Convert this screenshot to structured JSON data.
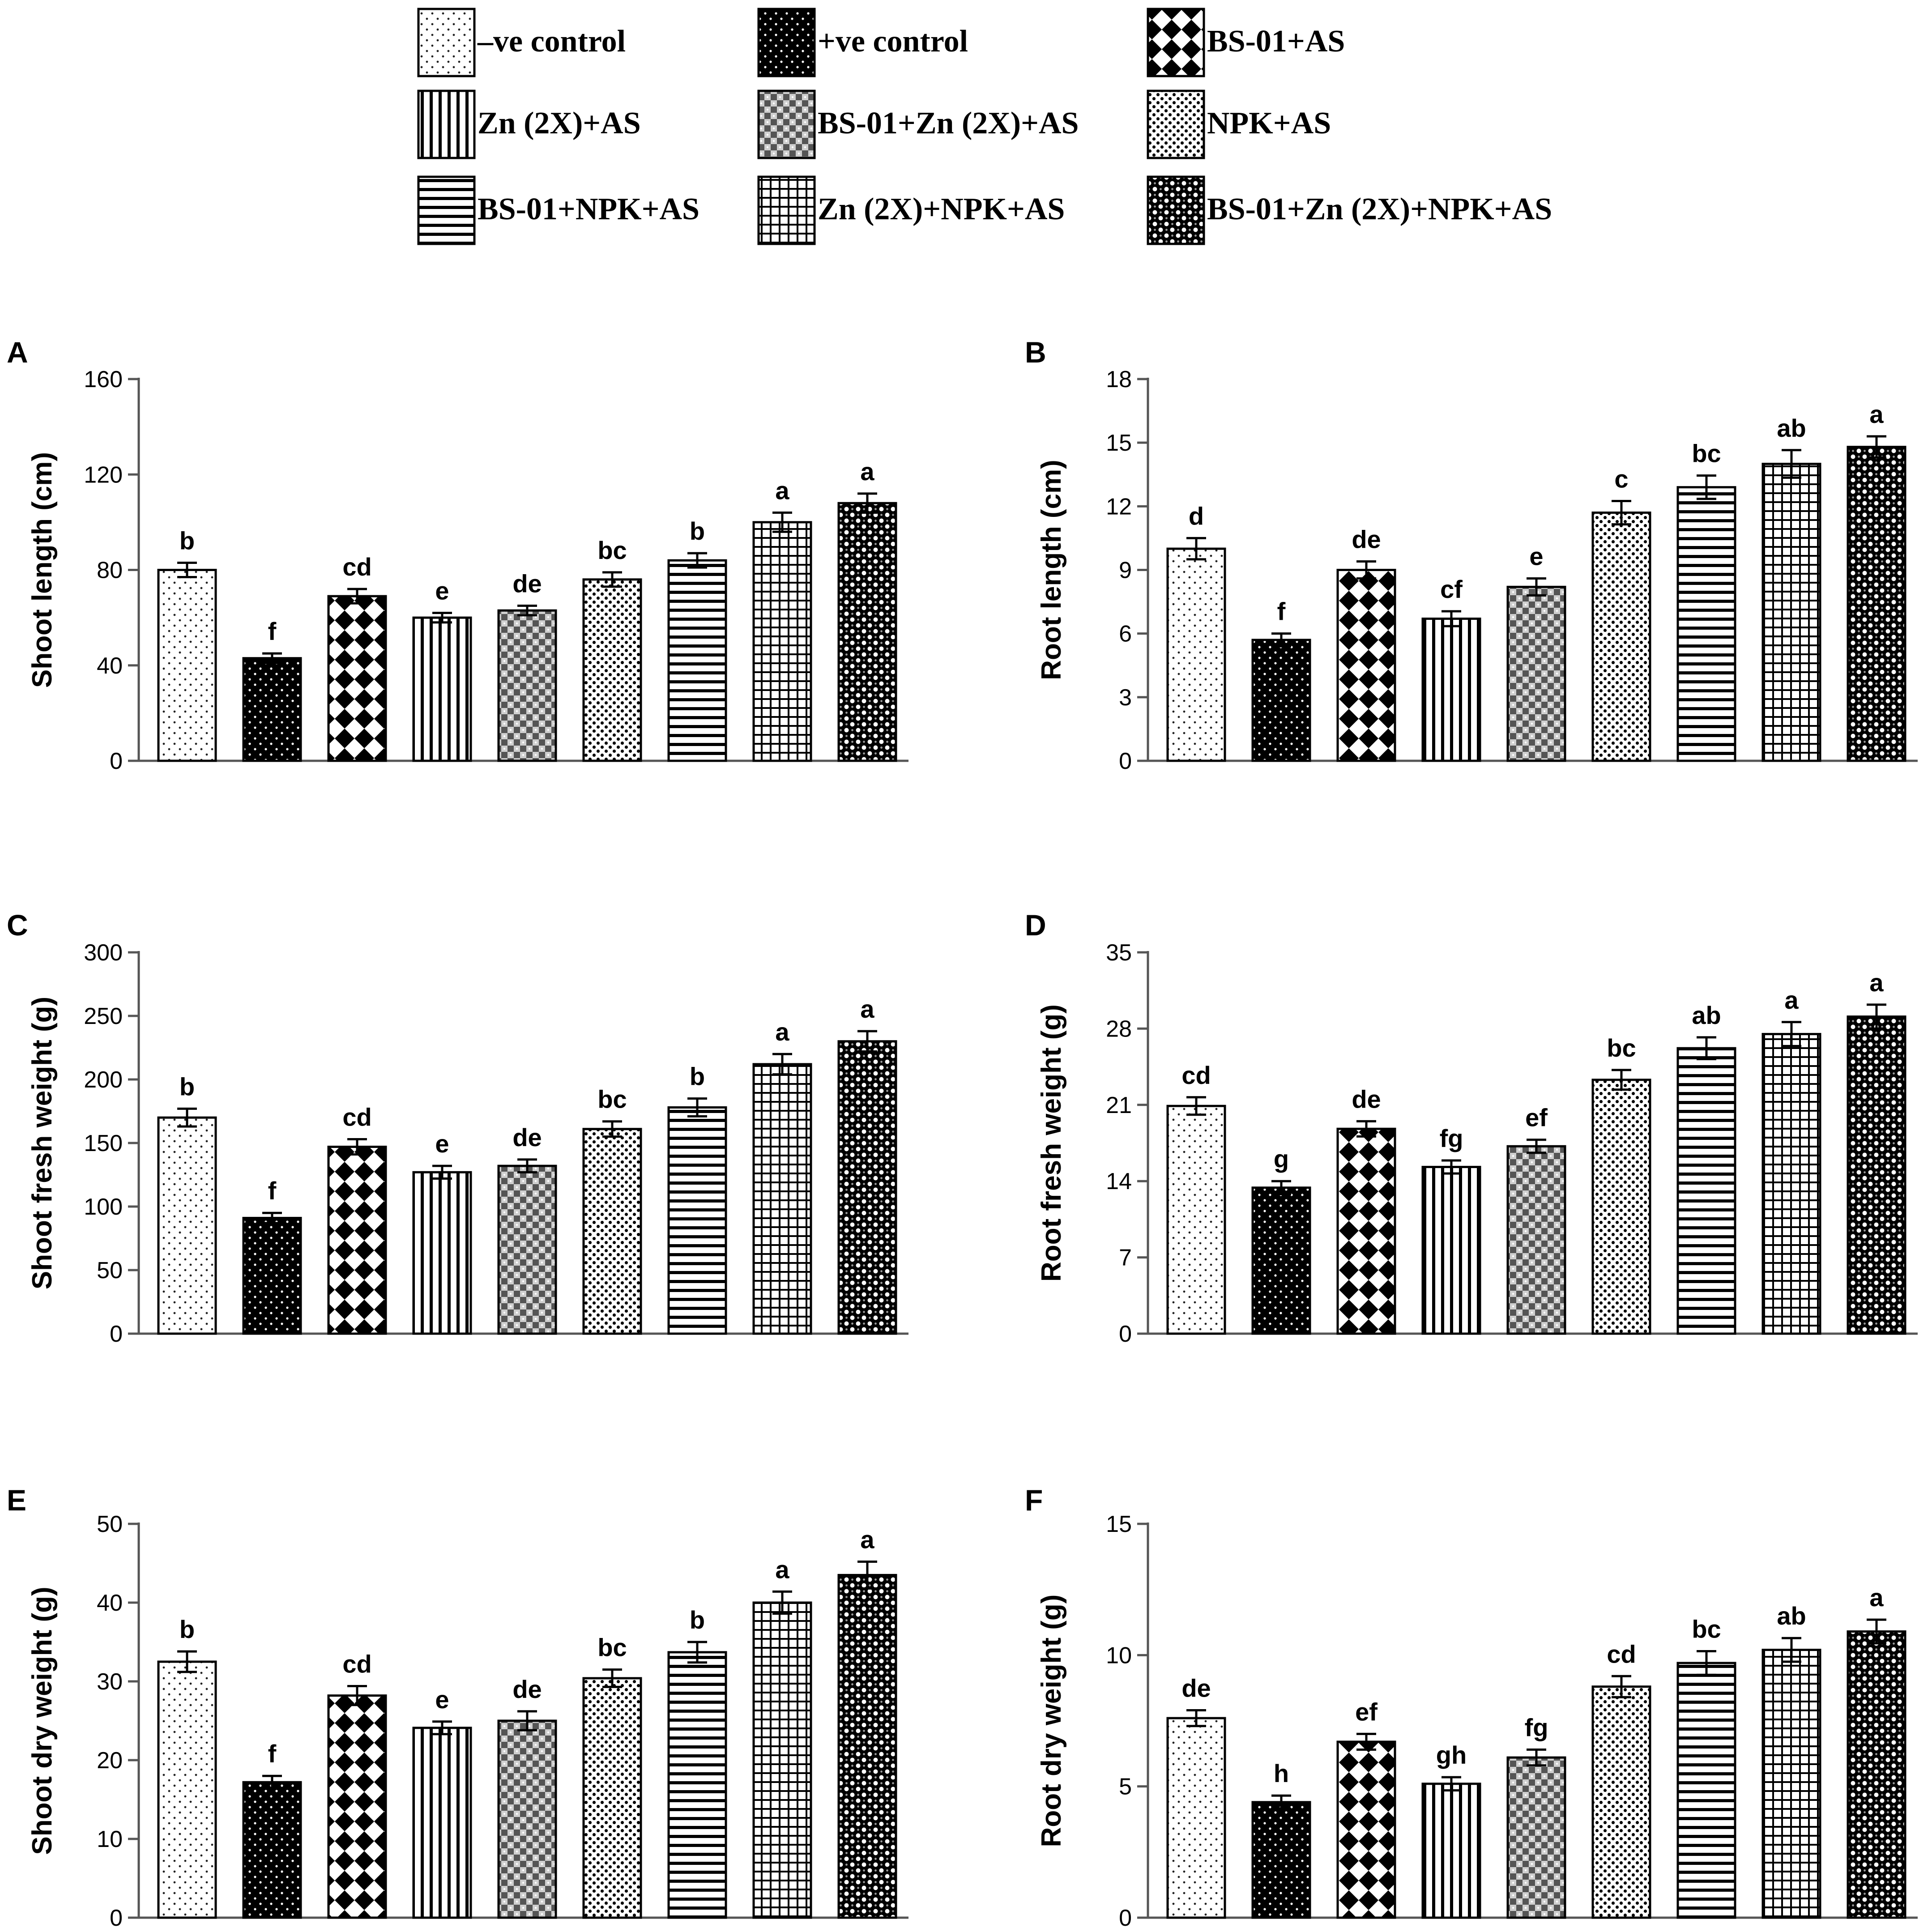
{
  "legend": [
    {
      "label": "–ve control",
      "pattern": "dots-sparse"
    },
    {
      "label": "+ve control",
      "pattern": "dots-black"
    },
    {
      "label": "BS-01+AS",
      "pattern": "diamonds"
    },
    {
      "label": "Zn (2X)+AS",
      "pattern": "vlines"
    },
    {
      "label": "BS-01+Zn (2X)+AS",
      "pattern": "checker"
    },
    {
      "label": "NPK+AS",
      "pattern": "dots-dense"
    },
    {
      "label": "BS-01+NPK+AS",
      "pattern": "hlines"
    },
    {
      "label": "Zn (2X)+NPK+AS",
      "pattern": "grid"
    },
    {
      "label": "BS-01+Zn (2X)+NPK+AS",
      "pattern": "circles"
    }
  ],
  "chart_data": [
    {
      "panel": "A",
      "type": "bar",
      "ylabel": "Shoot length (cm)",
      "ylim": [
        0,
        160
      ],
      "yticks": [
        "0",
        "40",
        "80",
        "120",
        "160"
      ],
      "categories": [
        "–ve control",
        "+ve control",
        "BS-01+AS",
        "Zn (2X)+AS",
        "BS-01+Zn (2X)+AS",
        "NPK+AS",
        "BS-01+NPK+AS",
        "Zn (2X)+NPK+AS",
        "BS-01+Zn (2X)+NPK+AS"
      ],
      "values": [
        80,
        43,
        69,
        60,
        63,
        76,
        84,
        100,
        108
      ],
      "errors": [
        3,
        2,
        3,
        2,
        2,
        3,
        3,
        4,
        4
      ],
      "letters": [
        "b",
        "f",
        "cd",
        "e",
        "de",
        "bc",
        "b",
        "a",
        "a"
      ]
    },
    {
      "panel": "B",
      "type": "bar",
      "ylabel": "Root length (cm)",
      "ylim": [
        0,
        18
      ],
      "yticks": [
        "0",
        "3",
        "6",
        "9",
        "12",
        "15",
        "18"
      ],
      "categories": [
        "–ve control",
        "+ve control",
        "BS-01+AS",
        "Zn (2X)+AS",
        "BS-01+Zn (2X)+AS",
        "NPK+AS",
        "BS-01+NPK+AS",
        "Zn (2X)+NPK+AS",
        "BS-01+Zn (2X)+NPK+AS"
      ],
      "values": [
        10,
        5.7,
        9,
        6.7,
        8.2,
        11.7,
        12.9,
        14,
        14.8
      ],
      "errors": [
        0.5,
        0.3,
        0.4,
        0.35,
        0.4,
        0.55,
        0.55,
        0.65,
        0.5
      ],
      "letters": [
        "d",
        "f",
        "de",
        "cf",
        "e",
        "c",
        "bc",
        "ab",
        "a"
      ]
    },
    {
      "panel": "C",
      "type": "bar",
      "ylabel": "Shoot fresh weight (g)",
      "ylim": [
        0,
        300
      ],
      "yticks": [
        "0",
        "50",
        "100",
        "150",
        "200",
        "250",
        "300"
      ],
      "categories": [
        "–ve control",
        "+ve control",
        "BS-01+AS",
        "Zn (2X)+AS",
        "BS-01+Zn (2X)+AS",
        "NPK+AS",
        "BS-01+NPK+AS",
        "Zn (2X)+NPK+AS",
        "BS-01+Zn (2X)+NPK+AS"
      ],
      "values": [
        170,
        91,
        147,
        127,
        132,
        161,
        178,
        212,
        230
      ],
      "errors": [
        7,
        4,
        6,
        5,
        5,
        6,
        7,
        8,
        8
      ],
      "letters": [
        "b",
        "f",
        "cd",
        "e",
        "de",
        "bc",
        "b",
        "a",
        "a"
      ]
    },
    {
      "panel": "D",
      "type": "bar",
      "ylabel": "Root fresh weight (g)",
      "ylim": [
        0,
        35
      ],
      "yticks": [
        "0",
        "7",
        "14",
        "21",
        "28",
        "35"
      ],
      "categories": [
        "–ve control",
        "+ve control",
        "BS-01+AS",
        "Zn (2X)+AS",
        "BS-01+Zn (2X)+AS",
        "NPK+AS",
        "BS-01+NPK+AS",
        "Zn (2X)+NPK+AS",
        "BS-01+Zn (2X)+NPK+AS"
      ],
      "values": [
        20.9,
        13.4,
        18.8,
        15.3,
        17.2,
        23.3,
        26.2,
        27.5,
        29.1
      ],
      "errors": [
        0.8,
        0.6,
        0.7,
        0.6,
        0.6,
        0.9,
        1.0,
        1.1,
        1.1
      ],
      "letters": [
        "cd",
        "g",
        "de",
        "fg",
        "ef",
        "bc",
        "ab",
        "a",
        "a"
      ]
    },
    {
      "panel": "E",
      "type": "bar",
      "ylabel": "Shoot dry weight (g)",
      "ylim": [
        0,
        50
      ],
      "yticks": [
        "0",
        "10",
        "20",
        "30",
        "40",
        "50"
      ],
      "categories": [
        "–ve control",
        "+ve control",
        "BS-01+AS",
        "Zn (2X)+AS",
        "BS-01+Zn (2X)+AS",
        "NPK+AS",
        "BS-01+NPK+AS",
        "Zn (2X)+NPK+AS",
        "BS-01+Zn (2X)+NPK+AS"
      ],
      "values": [
        32.5,
        17.2,
        28.2,
        24.1,
        25,
        30.4,
        33.7,
        40,
        43.5
      ],
      "errors": [
        1.3,
        0.8,
        1.2,
        0.8,
        1.2,
        1.1,
        1.3,
        1.4,
        1.7
      ],
      "letters": [
        "b",
        "f",
        "cd",
        "e",
        "de",
        "bc",
        "b",
        "a",
        "a"
      ]
    },
    {
      "panel": "F",
      "type": "bar",
      "ylabel": "Root dry weight (g)",
      "ylim": [
        0,
        15
      ],
      "yticks": [
        "0",
        "5",
        "10",
        "15"
      ],
      "categories": [
        "–ve control",
        "+ve control",
        "BS-01+AS",
        "Zn (2X)+AS",
        "BS-01+Zn (2X)+AS",
        "NPK+AS",
        "BS-01+NPK+AS",
        "Zn (2X)+NPK+AS",
        "BS-01+Zn (2X)+NPK+AS"
      ],
      "values": [
        7.6,
        4.4,
        6.7,
        5.1,
        6.1,
        8.8,
        9.7,
        10.2,
        10.9
      ],
      "errors": [
        0.3,
        0.25,
        0.3,
        0.25,
        0.3,
        0.4,
        0.45,
        0.45,
        0.45
      ],
      "letters": [
        "de",
        "h",
        "ef",
        "gh",
        "fg",
        "cd",
        "bc",
        "ab",
        "a"
      ]
    }
  ]
}
